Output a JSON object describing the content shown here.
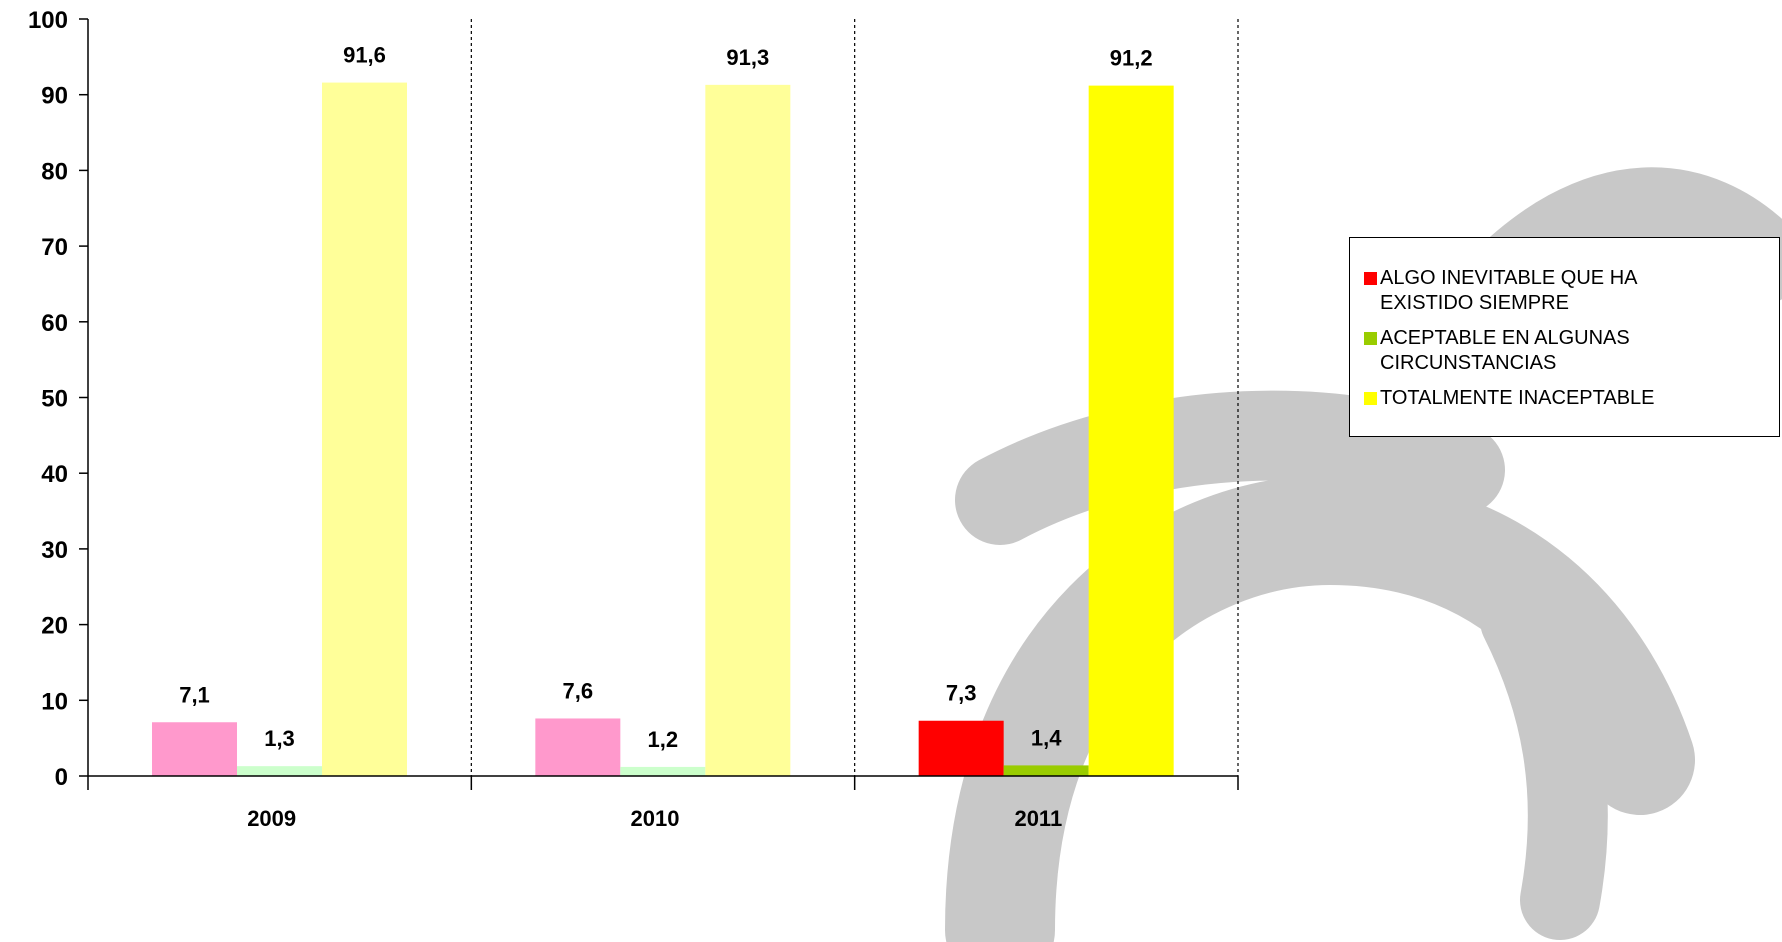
{
  "chart_data": {
    "type": "bar",
    "categories": [
      "2009",
      "2010",
      "2011"
    ],
    "series": [
      {
        "name": "ALGO INEVITABLE QUE HA EXISTIDO SIEMPRE",
        "values": [
          7.1,
          7.6,
          7.3
        ],
        "labels": [
          "7,1",
          "7,6",
          "7,3"
        ]
      },
      {
        "name": "ACEPTABLE EN ALGUNAS CIRCUNSTANCIAS",
        "values": [
          1.3,
          1.2,
          1.4
        ],
        "labels": [
          "1,3",
          "1,2",
          "1,4"
        ]
      },
      {
        "name": "TOTALMENTE INACEPTABLE",
        "values": [
          91.6,
          91.3,
          91.2
        ],
        "labels": [
          "91,6",
          "91,3",
          "91,2"
        ]
      }
    ],
    "bar_colors": [
      [
        "#ff99cc",
        "#ccffcc",
        "#ffff99"
      ],
      [
        "#ff99cc",
        "#ccffcc",
        "#ffff99"
      ],
      [
        "#ff0000",
        "#99cc00",
        "#ffff00"
      ]
    ],
    "legend_colors": [
      "#ff0000",
      "#99cc00",
      "#ffff00"
    ],
    "yticks": [
      "0",
      "10",
      "20",
      "30",
      "40",
      "50",
      "60",
      "70",
      "80",
      "90",
      "100"
    ],
    "ylim": [
      0,
      100
    ],
    "title": "",
    "xlabel": "",
    "ylabel": "",
    "grid": "dotted vertical separators between categories",
    "legend_position": "right"
  }
}
